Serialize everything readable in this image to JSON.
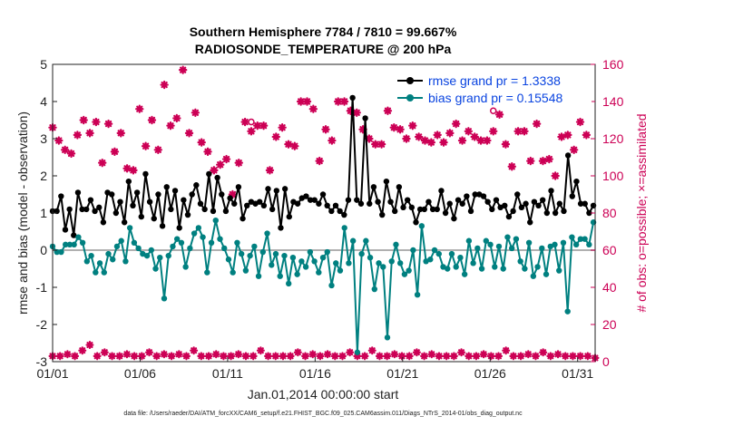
{
  "chart_data": {
    "type": "line",
    "title_line1": "Southern Hemisphere 7784 / 7810 = 99.667%",
    "title_line2": "RADIOSONDE_TEMPERATURE @ 200 hPa",
    "xlabel": "Jan.01,2014 00:00:00 start",
    "ylabel_left": "rmse and bias (model - observation)",
    "ylabel_right": "# of obs: o=possible; ×=assimilated",
    "ylim_left": [
      -3,
      5
    ],
    "ylim_right": [
      0,
      160
    ],
    "xlim": [
      1,
      32
    ],
    "x_ticks": [
      1,
      6,
      11,
      16,
      21,
      26,
      31
    ],
    "x_tick_labels": [
      "01/01",
      "01/06",
      "01/11",
      "01/16",
      "01/21",
      "01/26",
      "01/31"
    ],
    "y_ticks_left": [
      -3,
      -2,
      -1,
      0,
      1,
      2,
      3,
      4,
      5
    ],
    "y_ticks_right": [
      0,
      20,
      40,
      60,
      80,
      100,
      120,
      140,
      160
    ],
    "colors": {
      "rmse": "#000000",
      "bias": "#008080",
      "obs": "#cc0055",
      "zero_line": "#b0b0b0",
      "legend_text": "#0a44e0"
    },
    "legend": [
      {
        "label": "rmse grand pr = 1.3338",
        "series": "rmse"
      },
      {
        "label": "bias grand pr = 0.15548",
        "series": "bias"
      }
    ],
    "series": [
      {
        "name": "rmse",
        "values": [
          1.05,
          1.05,
          1.45,
          0.55,
          1.1,
          0.4,
          1.55,
          1.1,
          1.1,
          1.35,
          1.05,
          1.15,
          0.75,
          1.55,
          1.5,
          1.0,
          1.3,
          0.75,
          1.85,
          1.2,
          1.55,
          0.9,
          2.05,
          1.3,
          0.85,
          1.5,
          0.65,
          1.7,
          1.1,
          1.6,
          0.6,
          1.35,
          0.95,
          1.5,
          1.75,
          1.25,
          1.1,
          2.05,
          1.05,
          1.95,
          1.5,
          1.05,
          1.4,
          1.25,
          1.7,
          0.85,
          1.2,
          1.3,
          1.25,
          1.3,
          1.2,
          1.65,
          1.1,
          1.6,
          0.6,
          1.65,
          0.9,
          1.3,
          1.25,
          1.4,
          1.45,
          1.35,
          1.35,
          1.25,
          1.5,
          1.2,
          1.05,
          1.2,
          1.05,
          0.95,
          1.35,
          4.1,
          1.35,
          1.25,
          3.55,
          1.25,
          1.7,
          1.3,
          0.95,
          1.85,
          1.3,
          1.05,
          1.7,
          1.15,
          1.35,
          1.15,
          0.75,
          1.1,
          1.1,
          1.3,
          1.1,
          1.1,
          1.6,
          1.0,
          1.25,
          0.85,
          1.35,
          1.25,
          1.45,
          1.05,
          1.5,
          1.5,
          1.45,
          1.3,
          1.1,
          1.35,
          1.15,
          1.2,
          0.9,
          1.05,
          1.5,
          1.15,
          1.25,
          0.75,
          1.3,
          1.2,
          1.35,
          1.0,
          1.6,
          1.0,
          1.25,
          1.05,
          2.55,
          1.45,
          1.85,
          1.25,
          1.25,
          1.0,
          1.2
        ]
      },
      {
        "name": "bias",
        "values": [
          0.1,
          -0.05,
          -0.05,
          0.15,
          0.15,
          0.15,
          0.35,
          0.2,
          -0.3,
          -0.15,
          -0.6,
          -0.35,
          -0.6,
          -0.1,
          -0.25,
          0.1,
          0.25,
          -0.3,
          0.6,
          0.2,
          0.05,
          -0.1,
          -0.15,
          0.0,
          -0.5,
          -0.2,
          -1.3,
          -0.15,
          0.1,
          0.3,
          0.2,
          -0.45,
          0.05,
          0.45,
          0.6,
          0.35,
          -0.6,
          0.2,
          0.8,
          0.3,
          0.05,
          -0.25,
          -0.6,
          0.2,
          -0.1,
          -0.55,
          -0.15,
          0.1,
          -0.7,
          -0.05,
          0.45,
          -0.4,
          -0.1,
          -0.7,
          -0.15,
          -0.9,
          -0.2,
          -0.65,
          -0.3,
          -0.45,
          -0.05,
          -0.3,
          -0.6,
          -0.2,
          -0.05,
          -0.95,
          -0.35,
          -0.55,
          0.6,
          -0.35,
          0.25,
          -2.75,
          -0.1,
          0.25,
          -0.2,
          -1.05,
          -0.35,
          -0.45,
          -2.35,
          -0.3,
          0.15,
          -0.35,
          -0.65,
          -0.55,
          0.0,
          -1.2,
          0.65,
          -0.3,
          -0.25,
          0.0,
          -0.1,
          -0.45,
          -0.5,
          -0.1,
          -0.45,
          -0.2,
          -0.65,
          0.25,
          -0.35,
          0.05,
          -0.5,
          0.25,
          0.15,
          -0.45,
          0.1,
          -0.5,
          0.35,
          0.05,
          0.3,
          -0.3,
          -0.5,
          0.2,
          -0.7,
          -0.45,
          0.05,
          -0.65,
          0.1,
          0.15,
          -0.55,
          0.2,
          -1.65,
          0.35,
          0.15,
          0.3,
          0.3,
          0.15,
          0.75
        ]
      },
      {
        "name": "obs_possible",
        "values": [
          126,
          119,
          114,
          112,
          122,
          130,
          123,
          129,
          107,
          128,
          113,
          123,
          104,
          103,
          136,
          116,
          130,
          114,
          149,
          127,
          131,
          157,
          123,
          134,
          118,
          113,
          103,
          106,
          109,
          90,
          107,
          129,
          129,
          127,
          127,
          103,
          121,
          126,
          117,
          116,
          140,
          140,
          136,
          108,
          125,
          119,
          140,
          140,
          135,
          134,
          125,
          120,
          117,
          117,
          135,
          126,
          125,
          120,
          127,
          121,
          119,
          118,
          122,
          118,
          123,
          128,
          119,
          124,
          121,
          119,
          119,
          135,
          133,
          117,
          105,
          124,
          124,
          108,
          128,
          108,
          109,
          100,
          121,
          122,
          114,
          129,
          122
        ]
      },
      {
        "name": "obs_assimilated",
        "values": [
          126,
          119,
          114,
          112,
          122,
          130,
          123,
          129,
          107,
          128,
          113,
          123,
          104,
          103,
          136,
          116,
          130,
          114,
          149,
          127,
          131,
          157,
          123,
          134,
          118,
          113,
          103,
          106,
          109,
          90,
          107,
          129,
          124,
          127,
          127,
          103,
          121,
          126,
          117,
          116,
          140,
          140,
          136,
          108,
          125,
          119,
          140,
          140,
          135,
          134,
          125,
          120,
          117,
          117,
          135,
          126,
          125,
          120,
          127,
          121,
          119,
          118,
          122,
          118,
          123,
          128,
          119,
          124,
          121,
          119,
          119,
          124,
          133,
          117,
          105,
          124,
          124,
          108,
          128,
          108,
          109,
          100,
          121,
          122,
          114,
          129,
          122
        ]
      },
      {
        "name": "obs_low",
        "values": [
          3,
          3,
          4,
          3,
          6,
          9,
          3,
          5,
          3,
          3,
          4,
          3,
          3,
          5,
          3,
          4,
          3,
          4,
          3,
          6,
          3,
          3,
          4,
          3,
          3,
          4,
          3,
          3,
          6,
          3,
          3,
          3,
          3,
          5,
          3,
          4,
          3,
          4,
          3,
          3,
          5,
          3,
          3,
          6,
          3,
          3,
          4,
          3,
          3,
          5,
          3,
          4,
          3,
          3,
          3,
          5,
          3,
          3,
          4,
          3,
          3,
          6,
          3,
          3,
          4,
          3,
          5,
          3,
          4,
          3,
          3,
          3,
          3,
          2
        ]
      }
    ]
  },
  "footnote": "data file: /Users/raeder/DAI/ATM_forcXX/CAM6_setup/f.e21.FHIST_BGC.f09_025.CAM6assim.011/Diags_NTrS_2014-01/obs_diag_output.nc"
}
